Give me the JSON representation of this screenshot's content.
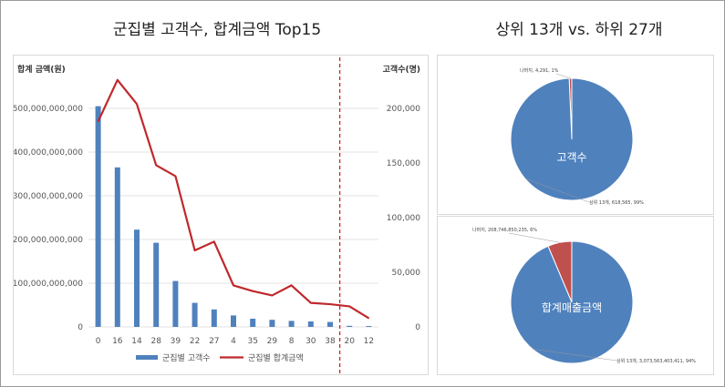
{
  "titles": {
    "left": "군집별 고객수, 합계금액 Top15",
    "right": "상위 13개 vs. 하위 27개"
  },
  "chart_data": [
    {
      "type": "bar+line",
      "title": "군집별 고객수, 합계금액 Top15",
      "categories": [
        "0",
        "16",
        "14",
        "28",
        "39",
        "22",
        "27",
        "4",
        "35",
        "29",
        "8",
        "30",
        "38",
        "20",
        "12"
      ],
      "y_left_label": "합계 금액(원)",
      "y_right_label": "고객수(명)",
      "y_left_ticks": [
        "0",
        "100,000,000,000",
        "200,000,000,000",
        "300,000,000,000",
        "400,000,000,000",
        "500,000,000,000"
      ],
      "y_right_ticks": [
        "0",
        "50,000",
        "100,000",
        "150,000",
        "200,000"
      ],
      "y_left_range": [
        0,
        500000000000
      ],
      "y_right_range": [
        0,
        200000
      ],
      "series": [
        {
          "name": "군집별 고객수",
          "kind": "bar",
          "axis": "right",
          "color": "#4f81bd",
          "values": [
            202000,
            146000,
            89000,
            77000,
            42000,
            22000,
            16000,
            10500,
            7500,
            6500,
            5500,
            5000,
            4500,
            1000,
            800
          ]
        },
        {
          "name": "군집별 합계금액",
          "kind": "line",
          "axis": "left",
          "color": "#c0282c",
          "values": [
            470000000000,
            565000000000,
            510000000000,
            370000000000,
            345000000000,
            175000000000,
            195000000000,
            95000000000,
            82000000000,
            72000000000,
            95000000000,
            55000000000,
            52000000000,
            47000000000,
            20000000000
          ]
        }
      ],
      "separator_after_index": 12,
      "legend_position": "bottom"
    },
    {
      "type": "pie",
      "center_label": "고객수",
      "slices": [
        {
          "label": "상위 13개, 618,565, 99%",
          "value": 618565,
          "color": "#4f81bd"
        },
        {
          "label": "나머지, 4,291, 1%",
          "value": 4291,
          "color": "#c0504d"
        }
      ]
    },
    {
      "type": "pie",
      "center_label": "합계매출금액",
      "slices": [
        {
          "label": "상위 13개, 3,073,563,403,411, 94%",
          "value": 3073563403411,
          "color": "#4f81bd"
        },
        {
          "label": "나머지, 208,746,850,235, 6%",
          "value": 208746850235,
          "color": "#c0504d"
        }
      ]
    }
  ]
}
